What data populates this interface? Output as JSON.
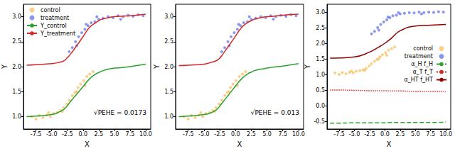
{
  "chart_data": [
    {
      "type": "scatter",
      "x_label": "X",
      "y_label": "Y",
      "annotation": "√PEHE = 0.0173",
      "xlim": [
        -9.5,
        10.8
      ],
      "ylim": [
        0.75,
        3.25
      ],
      "xticks": [
        -7.5,
        {
          "value": -5,
          "label": "-5.0"
        },
        -2.5,
        {
          "value": 0,
          "label": "0.0"
        },
        2.5,
        {
          "value": 5,
          "label": "5.0"
        },
        7.5,
        {
          "value": 10,
          "label": "10.0"
        }
      ],
      "yticks": [
        {
          "value": 1,
          "label": "1.0"
        },
        1.5,
        {
          "value": 2,
          "label": "2.0"
        },
        2.5,
        {
          "value": 3,
          "label": "3.0"
        }
      ],
      "grid": false,
      "legend": "upper left",
      "series": [
        {
          "name": "control",
          "type": "scatter",
          "marker": "circle",
          "color": "#f5a623",
          "x": [
            -8.2,
            -7.5,
            -7,
            -6.4,
            -5.8,
            -5.2,
            -4.7,
            -4.1,
            -3.6,
            -3.1,
            -2.6,
            -2.2,
            -1.7,
            -1.3,
            -0.8,
            -0.4,
            0.1,
            0.6,
            1.1,
            1.6,
            -5.5,
            -3.3,
            -1,
            0.3
          ],
          "values": [
            1.0,
            0.95,
            1.02,
            0.98,
            1.03,
            1.0,
            1.06,
            1.08,
            1.12,
            1.18,
            1.25,
            1.33,
            1.42,
            1.48,
            1.58,
            1.65,
            1.72,
            1.8,
            1.85,
            1.9,
            1.08,
            1.1,
            1.5,
            1.62
          ]
        },
        {
          "name": "treatment",
          "type": "scatter",
          "marker": "circle",
          "color": "#2b3fe0",
          "x": [
            -2.2,
            -1.7,
            -1.2,
            -0.7,
            -0.2,
            0.3,
            0.8,
            1.3,
            1.9,
            2.5,
            3.2,
            4,
            4.8,
            5.6,
            6.4,
            7.2,
            8,
            8.8,
            9.6,
            -1,
            0.5,
            2.2,
            6
          ],
          "values": [
            2.3,
            2.38,
            2.5,
            2.6,
            2.68,
            2.75,
            2.82,
            2.88,
            2.9,
            2.95,
            2.97,
            3.0,
            2.98,
            3.02,
            3.0,
            3.03,
            3.01,
            3.04,
            3.02,
            2.42,
            2.85,
            3.0,
            2.95
          ]
        },
        {
          "name": "Y_control",
          "type": "line",
          "line_style": "solid",
          "color": "#2ca02c",
          "x": [
            -9,
            -7.5,
            -5,
            -4,
            -3,
            -2.5,
            -2,
            -1,
            0,
            1,
            2,
            2.5,
            3,
            4,
            5,
            6,
            7.5,
            10
          ],
          "values": [
            1.0,
            1.01,
            1.04,
            1.08,
            1.15,
            1.22,
            1.3,
            1.45,
            1.6,
            1.75,
            1.85,
            1.88,
            1.91,
            1.95,
            1.97,
            1.98,
            2.0,
            2.05
          ]
        },
        {
          "name": "Y_treatment",
          "type": "line",
          "line_style": "solid",
          "color": "#d62728",
          "x": [
            -9,
            -7.5,
            -5,
            -4,
            -3,
            -2.5,
            -2,
            -1,
            0,
            1,
            2,
            2.5,
            3,
            4,
            5,
            6,
            7.5,
            10
          ],
          "values": [
            2.03,
            2.04,
            2.06,
            2.08,
            2.12,
            2.18,
            2.25,
            2.42,
            2.6,
            2.78,
            2.88,
            2.92,
            2.95,
            2.98,
            3.0,
            3.01,
            3.02,
            3.05
          ]
        }
      ]
    },
    {
      "type": "scatter",
      "x_label": "X",
      "y_label": "Y",
      "annotation": "√PEHE = 0.013",
      "xlim": [
        -9.5,
        10.8
      ],
      "ylim": [
        0.75,
        3.25
      ],
      "xticks": [
        -7.5,
        {
          "value": -5,
          "label": "-5.0"
        },
        -2.5,
        {
          "value": 0,
          "label": "0.0"
        },
        2.5,
        {
          "value": 5,
          "label": "5.0"
        },
        7.5,
        {
          "value": 10,
          "label": "10.0"
        }
      ],
      "yticks": [
        {
          "value": 1,
          "label": "1.0"
        },
        1.5,
        {
          "value": 2,
          "label": "2.0"
        },
        2.5,
        {
          "value": 3,
          "label": "3.0"
        }
      ],
      "grid": false,
      "series": [
        {
          "name": "control",
          "type": "scatter",
          "marker": "circle",
          "color": "#f5a623",
          "x": [
            -8.2,
            -7.5,
            -7,
            -6.4,
            -5.8,
            -5.2,
            -4.7,
            -4.1,
            -3.6,
            -3.1,
            -2.6,
            -2.2,
            -1.7,
            -1.3,
            -0.8,
            -0.4,
            0.1,
            0.6,
            1.1,
            1.6,
            -5.5,
            -3.3,
            -1,
            0.3
          ],
          "values": [
            1.0,
            0.95,
            1.02,
            0.98,
            1.03,
            1.0,
            1.06,
            1.08,
            1.12,
            1.18,
            1.25,
            1.33,
            1.42,
            1.48,
            1.58,
            1.65,
            1.72,
            1.8,
            1.85,
            1.9,
            1.08,
            1.1,
            1.5,
            1.62
          ]
        },
        {
          "name": "treatment",
          "type": "scatter",
          "marker": "circle",
          "color": "#2b3fe0",
          "x": [
            -2.2,
            -1.7,
            -1.2,
            -0.7,
            -0.2,
            0.3,
            0.8,
            1.3,
            1.9,
            2.5,
            3.2,
            4,
            4.8,
            5.6,
            6.4,
            7.2,
            8,
            8.8,
            9.6,
            -1,
            0.5,
            2.2,
            6
          ],
          "values": [
            2.3,
            2.38,
            2.5,
            2.6,
            2.68,
            2.75,
            2.82,
            2.88,
            2.9,
            2.95,
            2.97,
            3.0,
            2.98,
            3.02,
            3.0,
            3.03,
            3.01,
            3.04,
            3.02,
            2.42,
            2.85,
            3.0,
            2.95
          ]
        },
        {
          "name": "Y_control",
          "type": "line",
          "line_style": "solid",
          "color": "#2ca02c",
          "x": [
            -9,
            -7.5,
            -5,
            -4,
            -3,
            -2.5,
            -2,
            -1,
            0,
            1,
            2,
            2.5,
            3,
            4,
            5,
            6,
            7.5,
            10
          ],
          "values": [
            1.0,
            1.01,
            1.04,
            1.07,
            1.14,
            1.21,
            1.29,
            1.45,
            1.61,
            1.76,
            1.86,
            1.89,
            1.92,
            1.95,
            1.97,
            1.99,
            2.01,
            2.06
          ]
        },
        {
          "name": "Y_treatment",
          "type": "line",
          "line_style": "solid",
          "color": "#d62728",
          "x": [
            -9,
            -7.5,
            -5,
            -4,
            -3,
            -2.5,
            -2,
            -1,
            0,
            1,
            2,
            2.5,
            3,
            4,
            5,
            6,
            7.5,
            10
          ],
          "values": [
            2.02,
            2.03,
            2.05,
            2.08,
            2.12,
            2.17,
            2.25,
            2.43,
            2.61,
            2.79,
            2.89,
            2.92,
            2.95,
            2.98,
            3.0,
            3.01,
            3.03,
            3.05
          ]
        }
      ]
    },
    {
      "type": "scatter",
      "x_label": "X",
      "y_label": "Y",
      "xlim": [
        -9.5,
        10.8
      ],
      "ylim": [
        -0.75,
        3.25
      ],
      "xticks": [
        -7.5,
        {
          "value": -5,
          "label": "-5.0"
        },
        -2.5,
        {
          "value": 0,
          "label": "0.0"
        },
        2.5,
        {
          "value": 5,
          "label": "5.0"
        },
        7.5,
        {
          "value": 10,
          "label": "10.0"
        }
      ],
      "yticks": [
        -0.5,
        {
          "value": 0,
          "label": "0.0"
        },
        0.5,
        {
          "value": 1,
          "label": "1.0"
        },
        1.5,
        {
          "value": 2,
          "label": "2.0"
        },
        2.5,
        {
          "value": 3,
          "label": "3.0"
        }
      ],
      "grid": false,
      "legend": "right",
      "series": [
        {
          "name": "control",
          "type": "scatter",
          "marker": "circle",
          "color": "#f5a623",
          "x": [
            -8.2,
            -7.5,
            -7,
            -6.4,
            -5.8,
            -5.2,
            -4.7,
            -4.1,
            -3.6,
            -3.1,
            -2.6,
            -2.2,
            -1.7,
            -1.3,
            -0.8,
            -0.4,
            0.1,
            0.6,
            1.1,
            1.6,
            -5.5,
            -3.3,
            -1,
            0.3
          ],
          "values": [
            1.05,
            1.0,
            1.06,
            1.02,
            1.07,
            1.05,
            1.1,
            1.12,
            1.15,
            1.2,
            1.27,
            1.34,
            1.42,
            1.48,
            1.57,
            1.63,
            1.7,
            1.78,
            1.83,
            1.88,
            1.11,
            1.13,
            1.5,
            1.62
          ]
        },
        {
          "name": "treatment",
          "type": "scatter",
          "marker": "circle",
          "color": "#2b3fe0",
          "x": [
            -2.2,
            -1.7,
            -1.2,
            -0.7,
            -0.2,
            0.3,
            0.8,
            1.3,
            1.9,
            2.5,
            3.2,
            4,
            4.8,
            5.6,
            6.4,
            7.2,
            8,
            8.8,
            9.6,
            -1,
            0.5,
            2.2,
            6
          ],
          "values": [
            2.3,
            2.38,
            2.5,
            2.6,
            2.68,
            2.75,
            2.82,
            2.88,
            2.9,
            2.94,
            2.96,
            2.98,
            2.97,
            3.0,
            2.98,
            3.0,
            2.99,
            3.01,
            3.0,
            2.42,
            2.84,
            2.98,
            2.94
          ]
        },
        {
          "name": "α_H f_H",
          "type": "line",
          "line_style": "dashed",
          "color": "#2ca02c",
          "x": [
            -9,
            -7.5,
            -5,
            -2.5,
            -1,
            0,
            1,
            2.5,
            5,
            7.5,
            10
          ],
          "values": [
            -0.56,
            -0.56,
            -0.55,
            -0.55,
            -0.55,
            -0.55,
            -0.54,
            -0.54,
            -0.54,
            -0.54,
            -0.53
          ]
        },
        {
          "name": "α_T f_T",
          "type": "line",
          "line_style": "dotted",
          "color": "#d62728",
          "x": [
            -9,
            -7.5,
            -5,
            -2.5,
            -1,
            0,
            1,
            2.5,
            5,
            7.5,
            10
          ],
          "values": [
            0.5,
            0.5,
            0.49,
            0.48,
            0.48,
            0.48,
            0.47,
            0.47,
            0.46,
            0.46,
            0.45
          ]
        },
        {
          "name": "α_HT f_HT",
          "type": "line",
          "line_style": "solid",
          "color": "#8b0000",
          "x": [
            -9,
            -7.5,
            -5,
            -2.5,
            -1,
            0,
            1,
            2.5,
            5,
            7.5,
            10
          ],
          "values": [
            1.52,
            1.53,
            1.56,
            1.72,
            1.88,
            2.0,
            2.15,
            2.4,
            2.55,
            2.58,
            2.6
          ]
        }
      ]
    }
  ]
}
